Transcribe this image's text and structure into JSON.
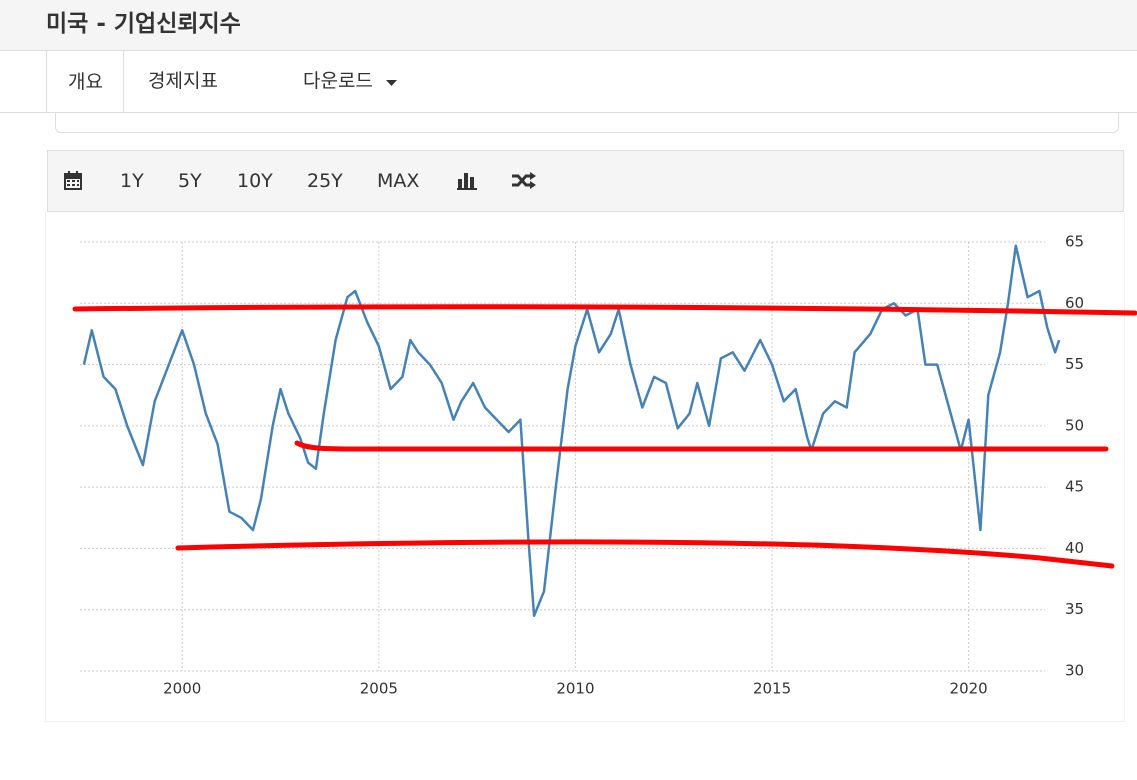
{
  "header": {
    "title": "미국 - 기업신뢰지수"
  },
  "tabs": [
    "개요",
    "경제지표",
    "다운로드"
  ],
  "toolbar": {
    "buttons": [
      "1Y",
      "5Y",
      "10Y",
      "25Y",
      "MAX"
    ]
  },
  "chart_data": {
    "type": "line",
    "color": "#4682b4",
    "grid": true,
    "x": [
      1997.5,
      1997.7,
      1998.0,
      1998.3,
      1998.6,
      1999.0,
      1999.3,
      1999.6,
      1999.9,
      2000.0,
      2000.3,
      2000.6,
      2000.9,
      2001.2,
      2001.5,
      2001.8,
      2002.0,
      2002.3,
      2002.5,
      2002.7,
      2003.0,
      2003.2,
      2003.4,
      2003.6,
      2003.9,
      2004.2,
      2004.4,
      2004.7,
      2005.0,
      2005.3,
      2005.6,
      2005.8,
      2006.0,
      2006.3,
      2006.6,
      2006.9,
      2007.1,
      2007.4,
      2007.7,
      2008.0,
      2008.3,
      2008.6,
      2008.8,
      2008.95,
      2009.2,
      2009.5,
      2009.8,
      2010.0,
      2010.3,
      2010.6,
      2010.9,
      2011.1,
      2011.4,
      2011.7,
      2012.0,
      2012.3,
      2012.6,
      2012.9,
      2013.1,
      2013.4,
      2013.7,
      2014.0,
      2014.3,
      2014.7,
      2015.0,
      2015.3,
      2015.6,
      2015.9,
      2016.0,
      2016.3,
      2016.6,
      2016.9,
      2017.1,
      2017.5,
      2017.8,
      2018.1,
      2018.4,
      2018.7,
      2018.9,
      2019.2,
      2019.5,
      2019.8,
      2020.0,
      2020.3,
      2020.5,
      2020.8,
      2021.0,
      2021.2,
      2021.5,
      2021.8,
      2022.0,
      2022.2,
      2022.3
    ],
    "values": [
      55,
      57.8,
      54,
      53,
      50,
      46.8,
      52,
      54.5,
      57,
      57.8,
      55,
      51,
      48.5,
      43,
      42.5,
      41.5,
      44,
      50,
      53,
      51,
      49,
      47,
      46.5,
      51,
      57,
      60.5,
      61,
      58.5,
      56.5,
      53,
      54,
      57,
      56,
      55,
      53.5,
      50.5,
      52,
      53.5,
      51.5,
      50.5,
      49.5,
      50.5,
      41,
      34.5,
      36.5,
      45,
      53,
      56.5,
      59.5,
      56,
      57.5,
      59.5,
      55,
      51.5,
      54,
      53.5,
      49.8,
      51,
      53.5,
      50,
      55.5,
      56,
      54.5,
      57,
      55,
      52,
      53,
      49,
      48,
      51,
      52,
      51.5,
      56,
      57.5,
      59.5,
      60,
      59,
      59.5,
      55,
      55,
      51.5,
      48,
      50.5,
      41.5,
      52.5,
      56,
      60,
      64.7,
      60.5,
      61,
      58,
      56,
      57
    ],
    "xlim": [
      1997.4,
      2022.4
    ],
    "xticks": [
      2000,
      2005,
      2010,
      2015,
      2020
    ],
    "ylim": [
      30,
      65
    ],
    "yticks": [
      30,
      35,
      40,
      45,
      50,
      55,
      60,
      65
    ]
  }
}
